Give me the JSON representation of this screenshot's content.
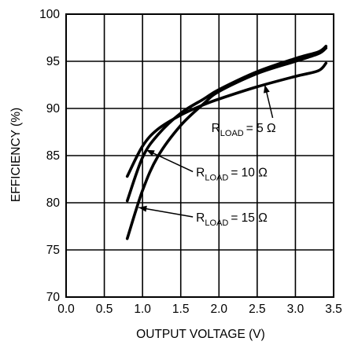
{
  "chart_data": {
    "type": "line",
    "xlabel": "OUTPUT VOLTAGE (V)",
    "ylabel": "EFFICIENCY (%)",
    "xlim": [
      0.0,
      3.5
    ],
    "ylim": [
      70,
      100
    ],
    "x_ticks": [
      "0.0",
      "0.5",
      "1.0",
      "1.5",
      "2.0",
      "2.5",
      "3.0",
      "3.5"
    ],
    "y_ticks": [
      "70",
      "75",
      "80",
      "85",
      "90",
      "95",
      "100"
    ],
    "grid": true,
    "series": [
      {
        "name": "R_LOAD = 5 Ω",
        "label_main": "R",
        "label_sub": "LOAD",
        "label_value": "= 5 Ω",
        "points": [
          [
            0.8,
            82.8
          ],
          [
            1.0,
            86.0
          ],
          [
            1.2,
            87.8
          ],
          [
            1.5,
            89.3
          ],
          [
            1.8,
            90.4
          ],
          [
            2.0,
            91.0
          ],
          [
            2.5,
            92.3
          ],
          [
            3.0,
            93.4
          ],
          [
            3.3,
            94.0
          ],
          [
            3.4,
            94.8
          ]
        ]
      },
      {
        "name": "R_LOAD = 10 Ω",
        "label_main": "R",
        "label_sub": "LOAD",
        "label_value": "= 10 Ω",
        "points": [
          [
            0.8,
            80.2
          ],
          [
            1.0,
            84.8
          ],
          [
            1.2,
            87.2
          ],
          [
            1.5,
            89.5
          ],
          [
            1.8,
            91.0
          ],
          [
            2.0,
            92.0
          ],
          [
            2.5,
            93.9
          ],
          [
            3.0,
            95.3
          ],
          [
            3.3,
            96.0
          ],
          [
            3.4,
            96.6
          ]
        ]
      },
      {
        "name": "R_LOAD = 15 Ω",
        "label_main": "R",
        "label_sub": "LOAD",
        "label_value": "= 15 Ω",
        "points": [
          [
            0.8,
            76.2
          ],
          [
            1.0,
            81.3
          ],
          [
            1.2,
            84.9
          ],
          [
            1.5,
            88.2
          ],
          [
            1.8,
            90.5
          ],
          [
            2.0,
            91.8
          ],
          [
            2.5,
            93.7
          ],
          [
            3.0,
            95.0
          ],
          [
            3.3,
            95.8
          ],
          [
            3.4,
            96.4
          ]
        ]
      }
    ],
    "annotations": [
      {
        "series": 0,
        "label_x": 1.9,
        "label_y": 87.5,
        "arrow_to": [
          2.6,
          92.5
        ]
      },
      {
        "series": 1,
        "label_x": 1.7,
        "label_y": 82.8,
        "arrow_to": [
          1.05,
          85.6
        ]
      },
      {
        "series": 2,
        "label_x": 1.7,
        "label_y": 78.0,
        "arrow_to": [
          0.95,
          79.5
        ]
      }
    ]
  }
}
